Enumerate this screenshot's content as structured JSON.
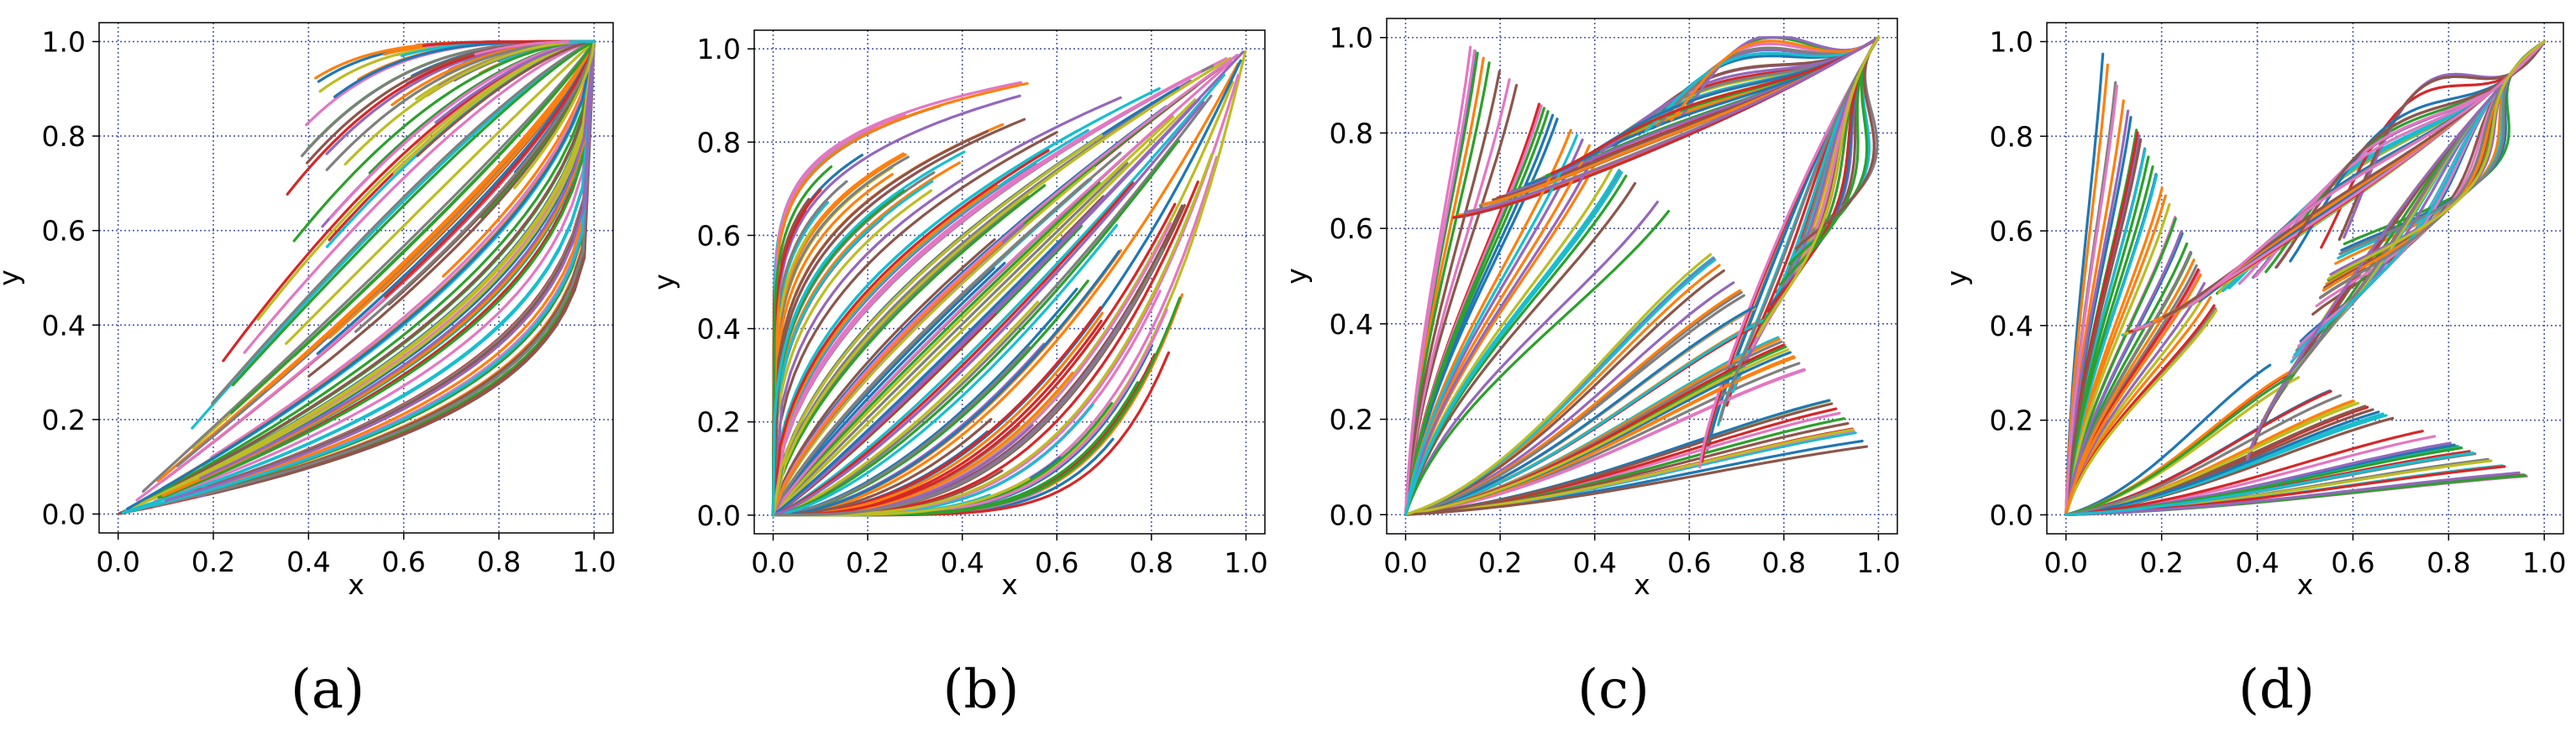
{
  "colors": [
    "#1f77b4",
    "#ff7f0e",
    "#2ca02c",
    "#d62728",
    "#9467bd",
    "#8c564b",
    "#e377c2",
    "#7f7f7f",
    "#bcbd22",
    "#17becf"
  ],
  "chart_data": [
    {
      "type": "line",
      "caption": "(a)",
      "description_kind": "trajectories converging to (1,1)",
      "xlabel": "x",
      "ylabel": "y",
      "xlim": [
        -0.04,
        1.04
      ],
      "ylim": [
        -0.04,
        1.04
      ],
      "xticks": [
        0.0,
        0.2,
        0.4,
        0.6,
        0.8,
        1.0
      ],
      "yticks": [
        0.0,
        0.2,
        0.4,
        0.6,
        0.8,
        1.0
      ],
      "tick_labels": [
        "0.0",
        "0.2",
        "0.4",
        "0.6",
        "0.8",
        "1.0"
      ],
      "grid": true,
      "sinks": [
        [
          1.0,
          1.0
        ]
      ],
      "field": {
        "kind": "pow",
        "params": [
          [
            0.2,
            5.0
          ]
        ]
      },
      "trajectory_count": 150
    },
    {
      "type": "line",
      "caption": "(b)",
      "description_kind": "trajectories diverging from (0,0)",
      "xlabel": "x",
      "ylabel": "y",
      "xlim": [
        -0.04,
        1.04
      ],
      "ylim": [
        -0.04,
        1.04
      ],
      "xticks": [
        0.0,
        0.2,
        0.4,
        0.6,
        0.8,
        1.0
      ],
      "yticks": [
        0.0,
        0.2,
        0.4,
        0.6,
        0.8,
        1.0
      ],
      "tick_labels": [
        "0.0",
        "0.2",
        "0.4",
        "0.6",
        "0.8",
        "1.0"
      ],
      "grid": true,
      "sources": [
        [
          0.0,
          0.0
        ]
      ],
      "field": {
        "kind": "pow",
        "params": [
          [
            0.1,
            6.0
          ]
        ]
      },
      "trajectory_count": 140
    },
    {
      "type": "line",
      "caption": "(c)",
      "description_kind": "saddle at (0.6, 0.6) with sinks at (0,0) and (1,1)",
      "xlabel": "x",
      "ylabel": "y",
      "xlim": [
        -0.04,
        1.04
      ],
      "ylim": [
        -0.04,
        1.04
      ],
      "xticks": [
        0.0,
        0.2,
        0.4,
        0.6,
        0.8,
        1.0
      ],
      "yticks": [
        0.0,
        0.2,
        0.4,
        0.6,
        0.8,
        1.0
      ],
      "tick_labels": [
        "0.0",
        "0.2",
        "0.4",
        "0.6",
        "0.8",
        "1.0"
      ],
      "grid": true,
      "saddle": [
        0.6,
        0.6
      ],
      "sinks": [
        [
          0.0,
          0.0
        ],
        [
          1.0,
          1.0
        ]
      ],
      "trajectory_count": 150
    },
    {
      "type": "line",
      "caption": "(d)",
      "description_kind": "saddle at (0.35, 0.35) with sinks at (0,0) and (1,1)",
      "xlabel": "x",
      "ylabel": "y",
      "xlim": [
        -0.04,
        1.04
      ],
      "ylim": [
        -0.04,
        1.04
      ],
      "xticks": [
        0.0,
        0.2,
        0.4,
        0.6,
        0.8,
        1.0
      ],
      "yticks": [
        0.0,
        0.2,
        0.4,
        0.6,
        0.8,
        1.0
      ],
      "tick_labels": [
        "0.0",
        "0.2",
        "0.4",
        "0.6",
        "0.8",
        "1.0"
      ],
      "grid": true,
      "saddle": [
        0.35,
        0.35
      ],
      "sinks": [
        [
          0.0,
          0.0
        ],
        [
          1.0,
          1.0
        ]
      ],
      "trajectory_count": 150
    }
  ]
}
